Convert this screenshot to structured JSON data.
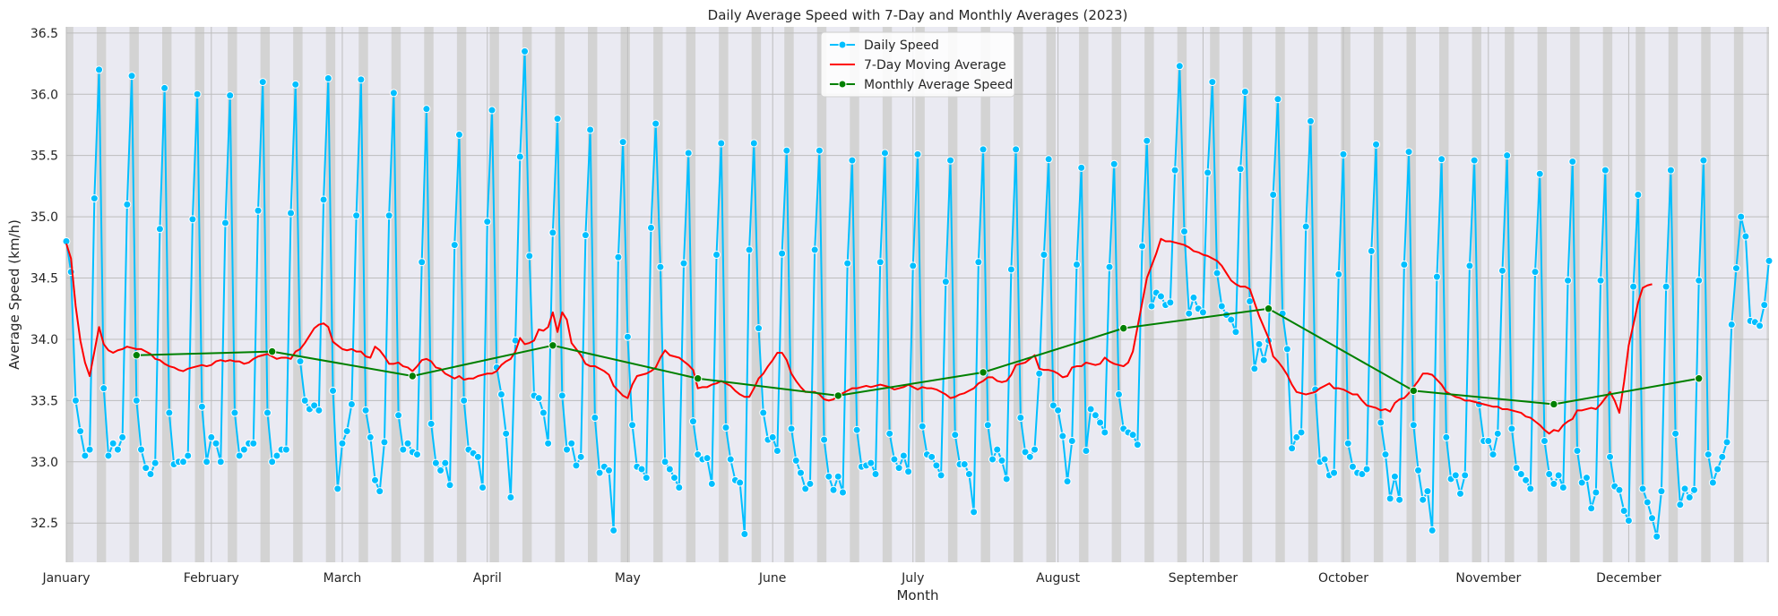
{
  "chart_data": {
    "type": "line",
    "title": "Daily Average Speed with 7-Day and Monthly Averages (2023)",
    "xlabel": "Month",
    "ylabel": "Average Speed (km/h)",
    "xlim": [
      0,
      364
    ],
    "ylim": [
      32.18,
      36.55
    ],
    "grid": true,
    "legend_position": "top-center",
    "x_ticks": [
      {
        "label": "January",
        "day": 0
      },
      {
        "label": "February",
        "day": 31
      },
      {
        "label": "March",
        "day": 59
      },
      {
        "label": "April",
        "day": 90
      },
      {
        "label": "May",
        "day": 120
      },
      {
        "label": "June",
        "day": 151
      },
      {
        "label": "July",
        "day": 181
      },
      {
        "label": "August",
        "day": 212
      },
      {
        "label": "September",
        "day": 243
      },
      {
        "label": "October",
        "day": 273
      },
      {
        "label": "November",
        "day": 304
      },
      {
        "label": "December",
        "day": 334
      }
    ],
    "y_ticks": [
      "32.5",
      "33.0",
      "33.5",
      "34.0",
      "34.5",
      "35.0",
      "35.5",
      "36.0",
      "36.5"
    ],
    "weekend_day_offset": 0,
    "series": [
      {
        "name": "Daily Speed",
        "color": "#00bfff",
        "style": "line-markers",
        "x": "day of year 0-364",
        "values": [
          34.8,
          34.55,
          33.5,
          33.25,
          33.05,
          33.1,
          35.15,
          36.2,
          33.6,
          33.05,
          33.15,
          33.1,
          33.2,
          35.1,
          36.15,
          33.5,
          33.1,
          32.95,
          32.9,
          32.99,
          34.9,
          36.05,
          33.4,
          32.98,
          33.0,
          33.0,
          33.05,
          34.98,
          36.0,
          33.45,
          33.0,
          33.2,
          33.15,
          33.0,
          34.95,
          35.99,
          33.4,
          33.05,
          33.1,
          33.15,
          33.15,
          35.05,
          36.1,
          33.4,
          33.0,
          33.05,
          33.1,
          33.1,
          35.03,
          36.08,
          33.82,
          33.5,
          33.43,
          33.46,
          33.42,
          35.14,
          36.13,
          33.58,
          32.78,
          33.15,
          33.25,
          33.47,
          35.01,
          36.12,
          33.42,
          33.2,
          32.85,
          32.76,
          33.16,
          35.01,
          36.01,
          33.38,
          33.1,
          33.15,
          33.08,
          33.06,
          34.63,
          35.88,
          33.31,
          32.99,
          32.93,
          32.99,
          32.81,
          34.77,
          35.67,
          33.5,
          33.1,
          33.07,
          33.04,
          32.79,
          34.96,
          35.87,
          33.77,
          33.55,
          33.23,
          32.71,
          33.99,
          35.49,
          36.35,
          34.68,
          33.54,
          33.52,
          33.4,
          33.15,
          34.87,
          35.8,
          33.54,
          33.1,
          33.15,
          32.97,
          33.04,
          34.85,
          35.71,
          33.36,
          32.91,
          32.96,
          32.93,
          32.44,
          34.67,
          35.61,
          34.02,
          33.3,
          32.96,
          32.94,
          32.87,
          34.91,
          35.76,
          34.59,
          33.0,
          32.94,
          32.87,
          32.79,
          34.62,
          35.52,
          33.33,
          33.06,
          33.02,
          33.03,
          32.82,
          34.69,
          35.6,
          33.28,
          33.02,
          32.85,
          32.83,
          32.41,
          34.73,
          35.6,
          34.09,
          33.4,
          33.18,
          33.2,
          33.09,
          34.7,
          35.54,
          33.27,
          33.01,
          32.91,
          32.78,
          32.82,
          34.73,
          35.54,
          33.18,
          32.88,
          32.77,
          32.88,
          32.75,
          34.62,
          35.46,
          33.26,
          32.96,
          32.97,
          32.99,
          32.9,
          34.63,
          35.52,
          33.23,
          33.02,
          32.95,
          33.05,
          32.92,
          34.6,
          35.51,
          33.29,
          33.06,
          33.04,
          32.97,
          32.89,
          34.47,
          35.46,
          33.22,
          32.98,
          32.98,
          32.9,
          32.59,
          34.63,
          35.55,
          33.3,
          33.02,
          33.1,
          33.01,
          32.86,
          34.57,
          35.55,
          33.36,
          33.08,
          33.04,
          33.1,
          33.72,
          34.69,
          35.47,
          33.46,
          33.42,
          33.21,
          32.84,
          33.17,
          34.61,
          35.4,
          33.09,
          33.43,
          33.38,
          33.32,
          33.24,
          34.59,
          35.43,
          33.55,
          33.27,
          33.24,
          33.22,
          33.14,
          34.76,
          35.62,
          34.27,
          34.38,
          34.35,
          34.28,
          34.3,
          35.38,
          36.23,
          34.88,
          34.21,
          34.34,
          34.25,
          34.22,
          35.36,
          36.1,
          34.54,
          34.27,
          34.2,
          34.16,
          34.06,
          35.39,
          36.02,
          34.31,
          33.76,
          33.96,
          33.83,
          33.99,
          35.18,
          35.96,
          34.21,
          33.92,
          33.11,
          33.2,
          33.24,
          34.92,
          35.78,
          33.59,
          33.0,
          33.02,
          32.89,
          32.91,
          34.53,
          35.51,
          33.15,
          32.96,
          32.91,
          32.9,
          32.94,
          34.72,
          35.59,
          33.32,
          33.06,
          32.7,
          32.88,
          32.69,
          34.61,
          35.53,
          33.3,
          32.93,
          32.69,
          32.76,
          32.44,
          34.51,
          35.47,
          33.2,
          32.86,
          32.89,
          32.74,
          32.89,
          34.6,
          35.46,
          33.47,
          33.17,
          33.17,
          33.06,
          33.23,
          34.56,
          35.5,
          33.27,
          32.95,
          32.9,
          32.85,
          32.78,
          34.55,
          35.35,
          33.17,
          32.9,
          32.82,
          32.89,
          32.79,
          34.48,
          35.45,
          33.09,
          32.83,
          32.87,
          32.62,
          32.75,
          34.48,
          35.38,
          33.04,
          32.8,
          32.77,
          32.6,
          32.52,
          34.43,
          35.18,
          32.78,
          32.67,
          32.54,
          32.39,
          32.76,
          34.43,
          35.38,
          33.23,
          32.65,
          32.78,
          32.71,
          32.77,
          34.48,
          35.46,
          33.06,
          32.83,
          32.94,
          33.04,
          33.16,
          34.12,
          34.58,
          35.0,
          34.84,
          34.15,
          34.14,
          34.11,
          34.28,
          34.64
        ]
      },
      {
        "name": "7-Day Moving Average",
        "color": "#ff0000",
        "style": "line",
        "x": "day of year 0-364",
        "values": [
          34.78,
          34.66,
          34.27,
          33.99,
          33.81,
          33.7,
          33.9,
          34.1,
          33.96,
          33.91,
          33.89,
          33.91,
          33.92,
          33.94,
          33.93,
          33.92,
          33.92,
          33.9,
          33.88,
          33.84,
          33.83,
          33.8,
          33.78,
          33.77,
          33.75,
          33.74,
          33.76,
          33.77,
          33.78,
          33.79,
          33.78,
          33.79,
          33.82,
          33.83,
          33.82,
          33.83,
          33.82,
          33.82,
          33.8,
          33.81,
          33.84,
          33.86,
          33.87,
          33.88,
          33.86,
          33.84,
          33.85,
          33.85,
          33.84,
          33.9,
          33.92,
          33.97,
          34.03,
          34.09,
          34.12,
          34.13,
          34.1,
          33.98,
          33.95,
          33.92,
          33.91,
          33.92,
          33.9,
          33.9,
          33.86,
          33.85,
          33.94,
          33.91,
          33.86,
          33.8,
          33.8,
          33.81,
          33.78,
          33.77,
          33.74,
          33.78,
          33.83,
          33.84,
          33.82,
          33.77,
          33.76,
          33.72,
          33.7,
          33.68,
          33.7,
          33.67,
          33.68,
          33.68,
          33.7,
          33.71,
          33.72,
          33.72,
          33.74,
          33.79,
          33.82,
          33.84,
          33.9,
          34.01,
          33.96,
          33.97,
          33.99,
          34.08,
          34.07,
          34.1,
          34.22,
          34.06,
          34.22,
          34.16,
          33.97,
          33.92,
          33.87,
          33.8,
          33.78,
          33.78,
          33.76,
          33.74,
          33.71,
          33.62,
          33.58,
          33.54,
          33.52,
          33.63,
          33.7,
          33.71,
          33.72,
          33.74,
          33.77,
          33.85,
          33.91,
          33.87,
          33.86,
          33.85,
          33.82,
          33.79,
          33.75,
          33.6,
          33.61,
          33.61,
          33.63,
          33.64,
          33.66,
          33.64,
          33.62,
          33.58,
          33.55,
          33.53,
          33.53,
          33.6,
          33.68,
          33.72,
          33.78,
          33.83,
          33.89,
          33.89,
          33.83,
          33.72,
          33.66,
          33.61,
          33.57,
          33.57,
          33.57,
          33.55,
          33.51,
          33.5,
          33.51,
          33.54,
          33.56,
          33.58,
          33.6,
          33.6,
          33.61,
          33.62,
          33.61,
          33.62,
          33.63,
          33.62,
          33.61,
          33.59,
          33.6,
          33.61,
          33.63,
          33.61,
          33.59,
          33.61,
          33.6,
          33.6,
          33.59,
          33.57,
          33.55,
          33.52,
          33.53,
          33.55,
          33.56,
          33.58,
          33.6,
          33.64,
          33.66,
          33.69,
          33.69,
          33.66,
          33.65,
          33.66,
          33.71,
          33.79,
          33.8,
          33.81,
          33.84,
          33.87,
          33.76,
          33.75,
          33.75,
          33.74,
          33.72,
          33.69,
          33.7,
          33.77,
          33.78,
          33.78,
          33.81,
          33.8,
          33.79,
          33.8,
          33.85,
          33.82,
          33.8,
          33.79,
          33.78,
          33.81,
          33.9,
          34.1,
          34.3,
          34.5,
          34.6,
          34.7,
          34.82,
          34.8,
          34.8,
          34.79,
          34.78,
          34.77,
          34.75,
          34.72,
          34.71,
          34.69,
          34.68,
          34.66,
          34.64,
          34.6,
          34.54,
          34.48,
          34.45,
          34.43,
          34.43,
          34.41,
          34.3,
          34.19,
          34.1,
          34.01,
          33.86,
          33.82,
          33.77,
          33.71,
          33.63,
          33.57,
          33.56,
          33.55,
          33.56,
          33.57,
          33.6,
          33.62,
          33.64,
          33.6,
          33.6,
          33.59,
          33.57,
          33.55,
          33.55,
          33.5,
          33.46,
          33.45,
          33.44,
          33.42,
          33.43,
          33.41,
          33.48,
          33.51,
          33.52,
          33.56,
          33.61,
          33.66,
          33.72,
          33.72,
          33.71,
          33.67,
          33.63,
          33.57,
          33.55,
          33.53,
          33.52,
          33.5,
          33.5,
          33.49,
          33.48,
          33.47,
          33.46,
          33.45,
          33.45,
          33.43,
          33.43,
          33.42,
          33.41,
          33.4,
          33.37,
          33.36,
          33.33,
          33.3,
          33.26,
          33.23,
          33.26,
          33.25,
          33.3,
          33.33,
          33.35,
          33.42,
          33.42,
          33.43,
          33.44,
          33.43,
          33.47,
          33.52,
          33.57,
          33.5,
          33.4,
          33.65,
          33.95,
          34.12,
          34.3,
          34.42,
          34.44,
          34.45
        ]
      },
      {
        "name": "Monthly Average Speed",
        "color": "#008000",
        "style": "line-markers",
        "x": [
          15,
          44,
          74,
          104,
          135,
          165,
          196,
          226,
          257,
          288,
          318,
          349
        ],
        "values": [
          33.87,
          33.9,
          33.7,
          33.95,
          33.68,
          33.54,
          33.73,
          34.09,
          34.25,
          33.58,
          33.47,
          33.68
        ]
      }
    ]
  }
}
